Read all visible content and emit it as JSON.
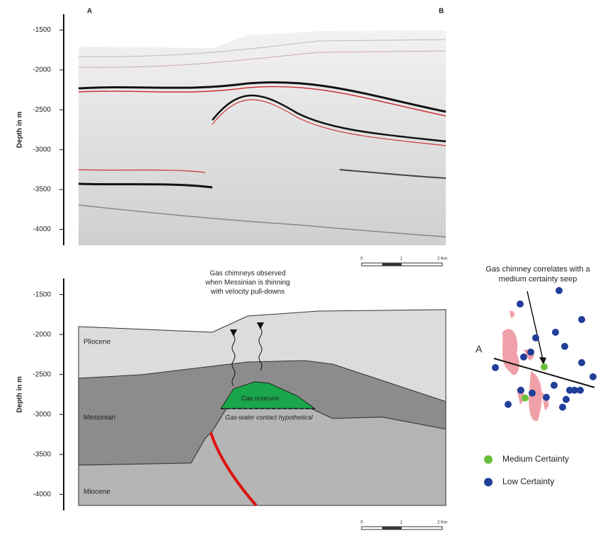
{
  "top_panel": {
    "labels": [
      "A",
      "B"
    ],
    "axis_label": "Depth in m",
    "ylim": [
      -4200,
      -1300
    ],
    "yticks": [
      -1500,
      -2000,
      -2500,
      -3000,
      -3500,
      -4000
    ]
  },
  "bottom_panel": {
    "axis_label": "Depth in m",
    "ylim": [
      -4200,
      -1300
    ],
    "yticks": [
      -1500,
      -2000,
      -2500,
      -3000,
      -3500,
      -4000
    ],
    "units": [
      "Pliocene",
      "Messinian",
      "Miocene"
    ],
    "gas_reservoir": "Gas reservoir",
    "gas_water_contact": "Gas-water contact hypothetical",
    "chimney_note": [
      "Gas chimneys observed",
      "when Messinian is thinning",
      "with velocity pull-downs"
    ]
  },
  "scale_bar": [
    "0",
    "1",
    "2 Km"
  ],
  "map": {
    "label": "A",
    "note": [
      "Gas chimney correlates with a",
      "medium certainty seep"
    ]
  },
  "legend": [
    {
      "name": "Medium Certainty",
      "color": "#6abf3a"
    },
    {
      "name": "Low Certainty",
      "color": "#1f3f99"
    }
  ]
}
